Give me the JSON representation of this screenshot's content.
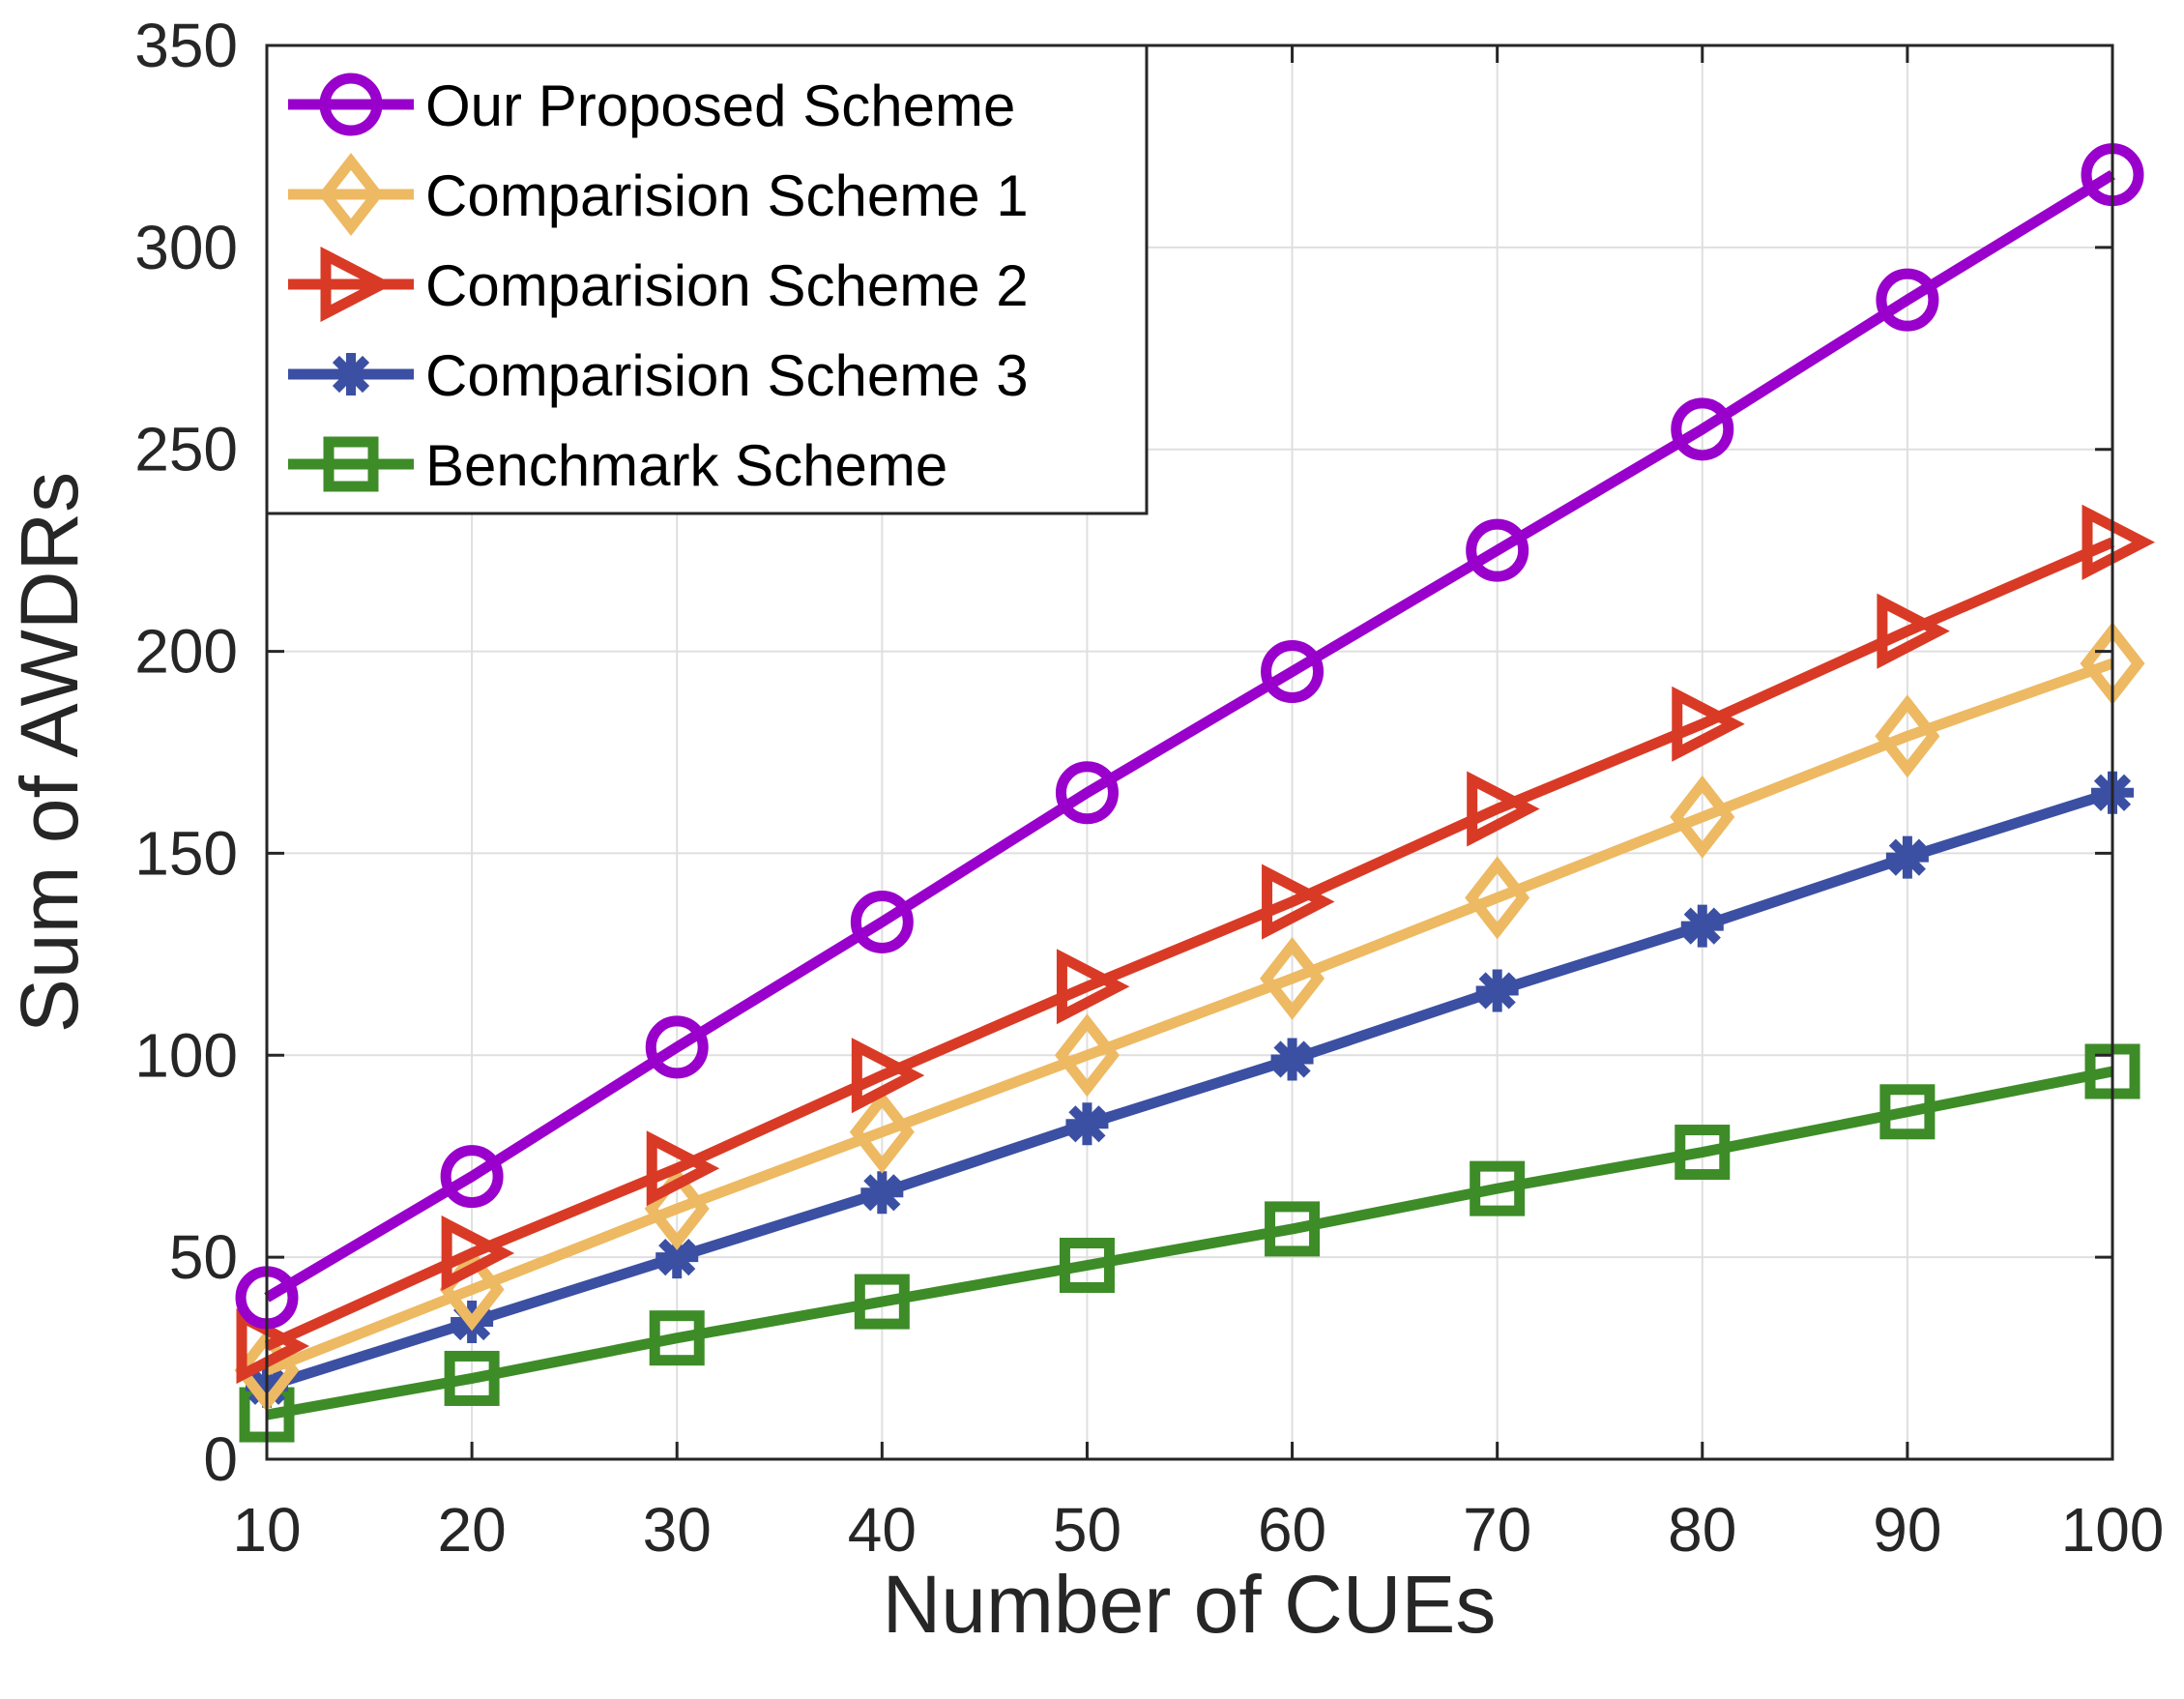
{
  "chart_data": {
    "type": "line",
    "xlabel": "Number of CUEs",
    "ylabel": "Sum of AWDRs",
    "xlim": [
      10,
      100
    ],
    "ylim": [
      0,
      350
    ],
    "xticks": [
      10,
      20,
      30,
      40,
      50,
      60,
      70,
      80,
      90,
      100
    ],
    "yticks": [
      0,
      50,
      100,
      150,
      200,
      250,
      300,
      350
    ],
    "grid": true,
    "legend_position": "top-left",
    "x": [
      10,
      20,
      30,
      40,
      50,
      60,
      70,
      80,
      90,
      100
    ],
    "series": [
      {
        "name": "Our Proposed Scheme",
        "color": "#9900CC",
        "marker": "circle",
        "values": [
          40,
          70,
          102,
          133,
          165,
          195,
          225,
          255,
          287,
          318
        ]
      },
      {
        "name": "Comparision Scheme 1",
        "color": "#EDB962",
        "marker": "diamond",
        "values": [
          22,
          42,
          62,
          81,
          100,
          119,
          139,
          159,
          179,
          197
        ]
      },
      {
        "name": "Comparision Scheme 2",
        "color": "#D93A26",
        "marker": "triangle-right",
        "values": [
          28,
          51,
          72,
          95,
          117,
          138,
          161,
          182,
          205,
          227
        ]
      },
      {
        "name": "Comparision Scheme 3",
        "color": "#3B4FA3",
        "marker": "asterisk",
        "values": [
          18,
          34,
          50,
          66,
          83,
          99,
          116,
          132,
          149,
          165
        ]
      },
      {
        "name": "Benchmark Scheme",
        "color": "#3D8C28",
        "marker": "square",
        "values": [
          11,
          20,
          30,
          39,
          48,
          57,
          67,
          76,
          86,
          96
        ]
      }
    ]
  }
}
